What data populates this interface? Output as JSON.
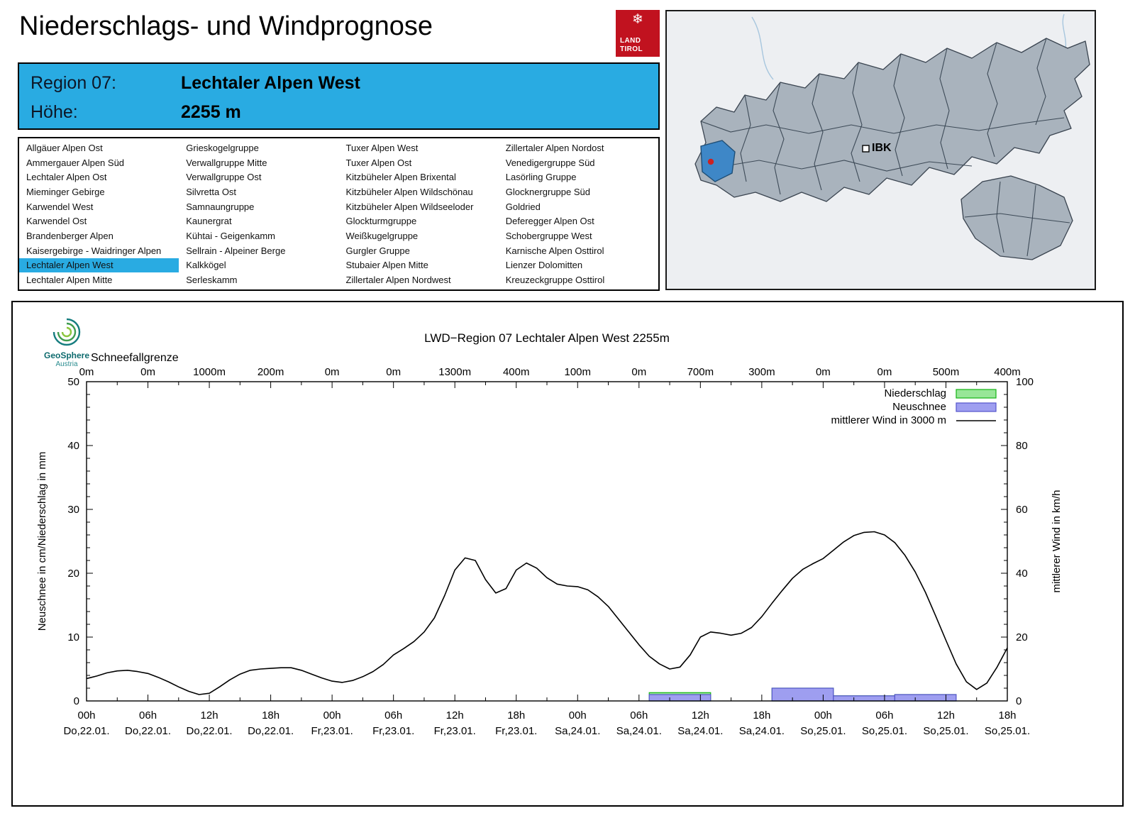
{
  "header": {
    "title": "Niederschlags- und Windprognose",
    "logo": {
      "line1": "LAND",
      "line2": "TIROL",
      "icon": "snowflake",
      "color": "#c1121f"
    }
  },
  "region_info": {
    "region_label": "Region 07:",
    "region_value": "Lechtaler Alpen West",
    "altitude_label": "Höhe:",
    "altitude_value": "2255 m",
    "accent_color": "#29abe2"
  },
  "region_list": {
    "selected": "Lechtaler Alpen West",
    "columns": [
      [
        "Allgäuer Alpen Ost",
        "Ammergauer Alpen Süd",
        "Lechtaler Alpen Ost",
        "Mieminger Gebirge",
        "Karwendel West",
        "Karwendel Ost",
        "Brandenberger Alpen",
        "Kaisergebirge - Waidringer Alpen",
        "Lechtaler Alpen West",
        "Lechtaler Alpen Mitte"
      ],
      [
        "Grieskogelgruppe",
        "Verwallgruppe Mitte",
        "Verwallgruppe Ost",
        "Silvretta Ost",
        "Samnaungruppe",
        "Kaunergrat",
        "Kühtai - Geigenkamm",
        "Sellrain - Alpeiner Berge",
        "Kalkkögel",
        "Serleskamm"
      ],
      [
        "Tuxer Alpen West",
        "Tuxer Alpen Ost",
        "Kitzbüheler Alpen Brixental",
        "Kitzbüheler Alpen Wildschönau",
        "Kitzbüheler Alpen Wildseeloder",
        "Glockturmgruppe",
        "Weißkugelgruppe",
        "Gurgler Gruppe",
        "Stubaier Alpen Mitte",
        "Zillertaler Alpen Nordwest"
      ],
      [
        "Zillertaler Alpen Nordost",
        "Venedigergruppe Süd",
        "Lasörling Gruppe",
        "Glocknergruppe Süd",
        "Goldried",
        "Deferegger Alpen Ost",
        "Schobergruppe West",
        "Karnische Alpen Osttirol",
        "Lienzer Dolomitten",
        "Kreuzeckgruppe Osttirol"
      ]
    ]
  },
  "map": {
    "ibk_label": "IBK",
    "highlight_color": "#3e87c7",
    "marker_color": "#cc2222"
  },
  "geosphere": {
    "line1": "GeoSphere",
    "line2": "Austria"
  },
  "chart_data": {
    "type": "line",
    "title": "LWD−Region 07 Lechtaler Alpen West 2255m",
    "snowline": {
      "label": "Schneefallgrenze",
      "values": [
        "0m",
        "0m",
        "1000m",
        "200m",
        "0m",
        "0m",
        "1300m",
        "400m",
        "100m",
        "0m",
        "700m",
        "300m",
        "0m",
        "0m",
        "500m",
        "400m"
      ]
    },
    "ylabel_left": "Neuschnee in cm/Niederschlag in mm",
    "ylabel_right": "mittlerer Wind in km/h",
    "ylim_left": [
      0,
      50
    ],
    "ylim_right": [
      0,
      100
    ],
    "grid": false,
    "legend_position": "top-right",
    "x_hours_total": 90,
    "x_tick_interval_hours": 6,
    "x_ticks": [
      {
        "hour": "00h",
        "date": "Do,22.01."
      },
      {
        "hour": "06h",
        "date": "Do,22.01."
      },
      {
        "hour": "12h",
        "date": "Do,22.01."
      },
      {
        "hour": "18h",
        "date": "Do,22.01."
      },
      {
        "hour": "00h",
        "date": "Fr,23.01."
      },
      {
        "hour": "06h",
        "date": "Fr,23.01."
      },
      {
        "hour": "12h",
        "date": "Fr,23.01."
      },
      {
        "hour": "18h",
        "date": "Fr,23.01."
      },
      {
        "hour": "00h",
        "date": "Sa,24.01."
      },
      {
        "hour": "06h",
        "date": "Sa,24.01."
      },
      {
        "hour": "12h",
        "date": "Sa,24.01."
      },
      {
        "hour": "18h",
        "date": "Sa,24.01."
      },
      {
        "hour": "00h",
        "date": "So,25.01."
      },
      {
        "hour": "06h",
        "date": "So,25.01."
      },
      {
        "hour": "12h",
        "date": "So,25.01."
      },
      {
        "hour": "18h",
        "date": "So,25.01."
      }
    ],
    "series": {
      "niederschlag": {
        "label": "Niederschlag",
        "unit": "mm",
        "fill": "#98e698",
        "stroke": "#14b514",
        "bars": [
          {
            "from": 55,
            "to": 61,
            "value": 1.3
          },
          {
            "from": 67,
            "to": 73,
            "value": 2.0
          },
          {
            "from": 73,
            "to": 79,
            "value": 0.8
          },
          {
            "from": 79,
            "to": 85,
            "value": 1.0
          }
        ]
      },
      "neuschnee": {
        "label": "Neuschnee",
        "unit": "cm",
        "fill": "#9e9ef0",
        "stroke": "#5555cc",
        "bars": [
          {
            "from": 55,
            "to": 61,
            "value": 1.0
          },
          {
            "from": 67,
            "to": 73,
            "value": 2.0
          },
          {
            "from": 73,
            "to": 79,
            "value": 0.8
          },
          {
            "from": 79,
            "to": 85,
            "value": 1.0
          }
        ]
      },
      "wind": {
        "label": "mittlerer Wind in 3000 m",
        "unit": "km/h",
        "axis": "right",
        "x_start_hour": 0,
        "x_step_hours": 1,
        "values": [
          7,
          7.8,
          8.8,
          9.4,
          9.6,
          9.2,
          8.6,
          7.4,
          6,
          4.4,
          3,
          2,
          2.4,
          4.4,
          6.6,
          8.4,
          9.6,
          10,
          10.2,
          10.4,
          10.4,
          9.6,
          8.4,
          7.2,
          6.2,
          5.8,
          6.4,
          7.6,
          9.2,
          11.4,
          14.4,
          16.4,
          18.6,
          21.6,
          26,
          33,
          41,
          44.8,
          44,
          38,
          33.8,
          35.2,
          41,
          43.2,
          41.6,
          38.6,
          36.6,
          36,
          35.8,
          34.8,
          32.6,
          29.6,
          25.6,
          21.6,
          17.6,
          14,
          11.6,
          10,
          10.6,
          14.4,
          20,
          21.6,
          21.2,
          20.6,
          21.2,
          23,
          26.4,
          30.6,
          34.6,
          38.4,
          41.2,
          43,
          44.6,
          47.2,
          49.8,
          51.8,
          52.8,
          53,
          52,
          49.6,
          45.6,
          40.4,
          34,
          26.6,
          19,
          11.6,
          6,
          3.6,
          5.6,
          10.6,
          16.6
        ]
      }
    }
  }
}
